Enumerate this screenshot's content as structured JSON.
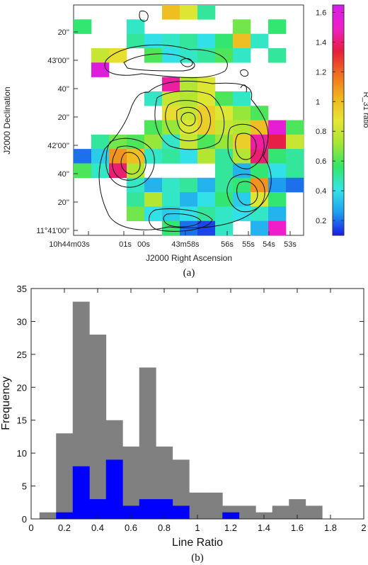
{
  "chart_data": [
    {
      "type": "heatmap",
      "panel_label": "(a)",
      "xlabel": "J2000 Right Ascension",
      "ylabel": "J2000 Declination",
      "x_tick_labels": [
        "10h44m03s",
        "01s",
        "00s",
        "43m58s",
        "56s",
        "55s",
        "54s",
        "53s"
      ],
      "y_tick_labels": [
        "20''",
        "43'00''",
        "40''",
        "20''",
        "42'00''",
        "40''",
        "20''",
        "11°41'00''"
      ],
      "colorbar": {
        "label": "R_31 ratio",
        "ticks": [
          0.2,
          0.4,
          0.6,
          0.8,
          1,
          1.2,
          1.4,
          1.6
        ],
        "range": [
          0.1,
          1.65
        ],
        "colors": [
          "#1a1ae6",
          "#1ea0f0",
          "#33e6e6",
          "#33e666",
          "#a6e633",
          "#e6e633",
          "#f0b41e",
          "#f06e1e",
          "#e61e3c",
          "#f01ec8",
          "#d21ee6"
        ]
      },
      "grid_cols": 13,
      "grid_rows": 16,
      "cells": [
        [
          0,
          5,
          1.0
        ],
        [
          0,
          6,
          0.85
        ],
        [
          0,
          7,
          0.5
        ],
        [
          1,
          0,
          0.55
        ],
        [
          1,
          3,
          0.45
        ],
        [
          1,
          9,
          0.65
        ],
        [
          1,
          11,
          0.55
        ],
        [
          2,
          3,
          0.5
        ],
        [
          2,
          4,
          0.4
        ],
        [
          2,
          5,
          0.45
        ],
        [
          2,
          6,
          0.5
        ],
        [
          2,
          7,
          0.4
        ],
        [
          2,
          8,
          0.55
        ],
        [
          2,
          9,
          1.0
        ],
        [
          2,
          10,
          0.45
        ],
        [
          3,
          1,
          0.8
        ],
        [
          3,
          2,
          0.9
        ],
        [
          3,
          4,
          0.6
        ],
        [
          3,
          5,
          0.4
        ],
        [
          3,
          6,
          0.45
        ],
        [
          3,
          7,
          0.5
        ],
        [
          3,
          8,
          0.6
        ],
        [
          3,
          9,
          0.45
        ],
        [
          3,
          11,
          0.5
        ],
        [
          4,
          1,
          1.6
        ],
        [
          5,
          5,
          1.45
        ],
        [
          5,
          6,
          0.75
        ],
        [
          5,
          7,
          0.85
        ],
        [
          6,
          4,
          0.45
        ],
        [
          6,
          5,
          0.8
        ],
        [
          6,
          6,
          0.75
        ],
        [
          6,
          7,
          0.85
        ],
        [
          6,
          8,
          0.6
        ],
        [
          6,
          9,
          0.45
        ],
        [
          7,
          5,
          0.9
        ],
        [
          7,
          6,
          0.8
        ],
        [
          7,
          7,
          0.95
        ],
        [
          7,
          8,
          0.85
        ],
        [
          7,
          9,
          0.7
        ],
        [
          7,
          10,
          0.6
        ],
        [
          8,
          4,
          0.6
        ],
        [
          8,
          5,
          0.7
        ],
        [
          8,
          6,
          0.85
        ],
        [
          8,
          7,
          0.95
        ],
        [
          8,
          8,
          0.8
        ],
        [
          8,
          9,
          0.75
        ],
        [
          8,
          10,
          1.0
        ],
        [
          8,
          11,
          1.55
        ],
        [
          8,
          12,
          0.6
        ],
        [
          9,
          1,
          0.5
        ],
        [
          9,
          2,
          0.65
        ],
        [
          9,
          3,
          0.6
        ],
        [
          9,
          4,
          0.7
        ],
        [
          9,
          5,
          0.45
        ],
        [
          9,
          6,
          0.8
        ],
        [
          9,
          7,
          0.6
        ],
        [
          9,
          8,
          0.7
        ],
        [
          9,
          9,
          0.95
        ],
        [
          9,
          10,
          1.45
        ],
        [
          9,
          11,
          1.35
        ],
        [
          9,
          12,
          0.8
        ],
        [
          10,
          0,
          0.2
        ],
        [
          10,
          1,
          0.35
        ],
        [
          10,
          2,
          1.1
        ],
        [
          10,
          3,
          1.0
        ],
        [
          10,
          4,
          0.45
        ],
        [
          10,
          5,
          0.5
        ],
        [
          10,
          6,
          0.4
        ],
        [
          10,
          7,
          0.75
        ],
        [
          10,
          8,
          0.5
        ],
        [
          10,
          9,
          0.75
        ],
        [
          10,
          10,
          1.4
        ],
        [
          10,
          11,
          0.55
        ],
        [
          10,
          12,
          0.5
        ],
        [
          11,
          0,
          0.6
        ],
        [
          11,
          1,
          0.45
        ],
        [
          11,
          2,
          1.4
        ],
        [
          11,
          3,
          0.75
        ],
        [
          11,
          8,
          0.5
        ],
        [
          11,
          9,
          0.3
        ],
        [
          11,
          10,
          0.55
        ],
        [
          11,
          11,
          0.4
        ],
        [
          11,
          12,
          0.5
        ],
        [
          12,
          3,
          0.45
        ],
        [
          12,
          4,
          0.3
        ],
        [
          12,
          5,
          0.45
        ],
        [
          12,
          6,
          0.5
        ],
        [
          12,
          7,
          0.3
        ],
        [
          12,
          8,
          0.5
        ],
        [
          12,
          9,
          0.55
        ],
        [
          12,
          10,
          1.1
        ],
        [
          12,
          11,
          0.25
        ],
        [
          12,
          12,
          0.2
        ],
        [
          13,
          3,
          0.5
        ],
        [
          13,
          4,
          0.75
        ],
        [
          13,
          5,
          0.45
        ],
        [
          13,
          6,
          0.3
        ],
        [
          13,
          7,
          0.4
        ],
        [
          13,
          8,
          0.55
        ],
        [
          13,
          9,
          0.35
        ],
        [
          13,
          10,
          0.85
        ],
        [
          13,
          11,
          0.55
        ],
        [
          14,
          3,
          0.65
        ],
        [
          14,
          4,
          0.4
        ],
        [
          14,
          5,
          0.35
        ],
        [
          14,
          6,
          0.4
        ],
        [
          14,
          7,
          0.5
        ],
        [
          14,
          8,
          0.45
        ],
        [
          14,
          9,
          0.4
        ],
        [
          14,
          10,
          0.45
        ],
        [
          14,
          11,
          0.3
        ],
        [
          15,
          5,
          0.55
        ],
        [
          15,
          6,
          0.2
        ],
        [
          15,
          7,
          0.15
        ],
        [
          15,
          8,
          0.45
        ],
        [
          15,
          10,
          0.3
        ],
        [
          15,
          11,
          1.5
        ]
      ]
    },
    {
      "type": "bar",
      "panel_label": "(b)",
      "xlabel": "Line Ratio",
      "ylabel": "Frequency",
      "xlim": [
        0,
        2
      ],
      "ylim": [
        0,
        35
      ],
      "x_ticks": [
        "0",
        "0.2",
        "0.4",
        "0.6",
        "0.8",
        "1",
        "1.2",
        "1.4",
        "1.6",
        "1.8",
        "2"
      ],
      "y_ticks": [
        "0",
        "5",
        "10",
        "15",
        "20",
        "25",
        "30",
        "35"
      ],
      "bin_edges": [
        0.05,
        0.15,
        0.25,
        0.35,
        0.45,
        0.55,
        0.65,
        0.75,
        0.85,
        0.95,
        1.05,
        1.15,
        1.25,
        1.35,
        1.45,
        1.55,
        1.65,
        1.75
      ],
      "series": [
        {
          "color": "#808080",
          "values": [
            1,
            13,
            33,
            28,
            15,
            11,
            23,
            11,
            9,
            4,
            4,
            2,
            2,
            1,
            2,
            3,
            2
          ]
        },
        {
          "color": "#0000ff",
          "values": [
            0,
            1,
            8,
            3,
            9,
            2,
            3,
            3,
            2,
            0,
            0,
            1,
            0,
            0,
            0,
            0,
            0
          ]
        }
      ]
    }
  ]
}
